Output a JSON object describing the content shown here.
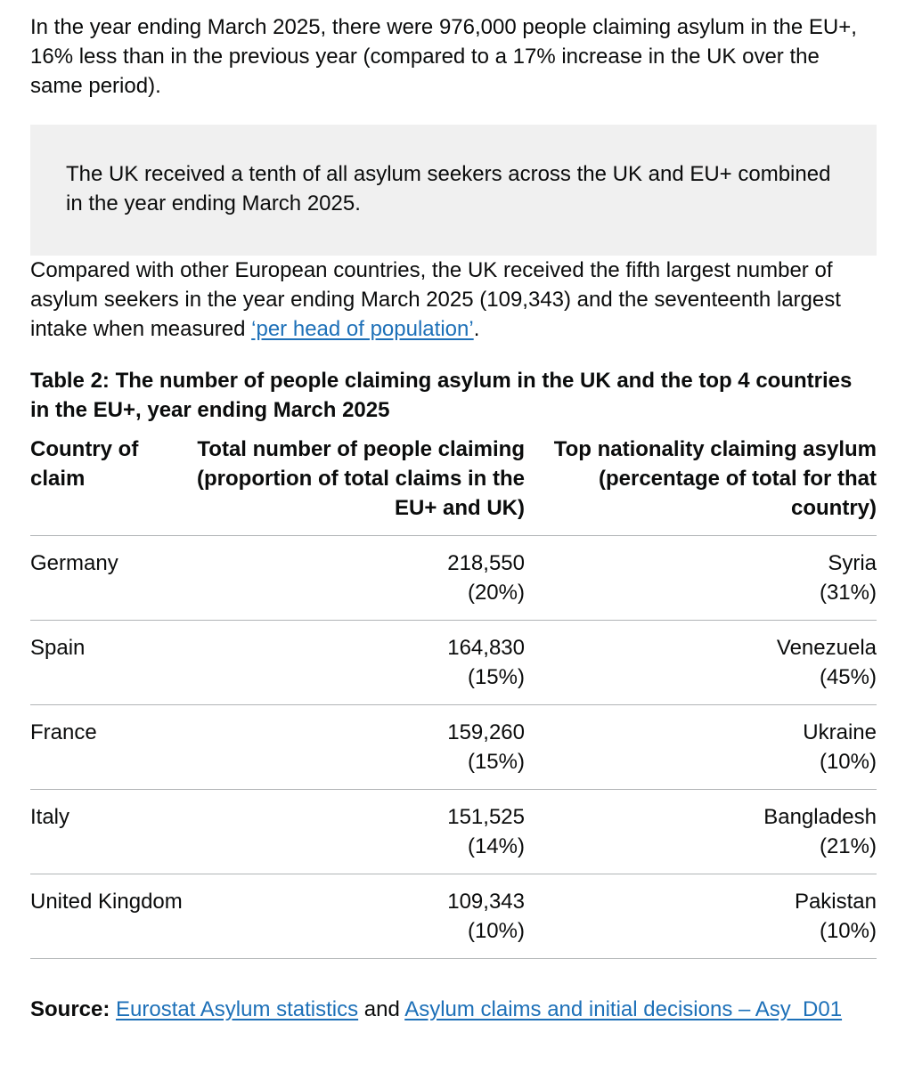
{
  "intro": "In the year ending March 2025, there were 976,000 people claiming asylum in the EU+, 16% less than in the previous year (compared to a 17% increase in the UK over the same period).",
  "callout": "The UK received a tenth of all asylum seekers across the UK and EU+ combined in the year ending March 2025.",
  "compare": {
    "text_before": "Compared with other European countries, the UK received the fifth largest number of asylum seekers in the year ending March 2025 (109,343) and the seventeenth largest intake when measured ",
    "link_label": "‘per head of population’",
    "text_after": "."
  },
  "table": {
    "caption": "Table 2: The number of people claiming asylum in the UK and the top 4 countries in the EU+, year ending March 2025",
    "headers": [
      "Country of claim",
      "Total number of people claiming (proportion of total claims in the EU+ and UK)",
      "Top nationality claiming asylum (percentage of total for that country)"
    ],
    "rows": [
      {
        "country": "Germany",
        "total": "218,550",
        "total_pct": "(20%)",
        "nationality": "Syria",
        "nationality_pct": "(31%)"
      },
      {
        "country": "Spain",
        "total": "164,830",
        "total_pct": "(15%)",
        "nationality": "Venezuela",
        "nationality_pct": "(45%)"
      },
      {
        "country": "France",
        "total": "159,260",
        "total_pct": "(15%)",
        "nationality": "Ukraine",
        "nationality_pct": "(10%)"
      },
      {
        "country": "Italy",
        "total": "151,525",
        "total_pct": "(14%)",
        "nationality": "Bangladesh",
        "nationality_pct": "(21%)"
      },
      {
        "country": "United Kingdom",
        "total": "109,343",
        "total_pct": "(10%)",
        "nationality": "Pakistan",
        "nationality_pct": "(10%)"
      }
    ]
  },
  "source": {
    "label": "Source:",
    "link1": "Eurostat Asylum statistics",
    "joiner": " and ",
    "link2": "Asylum claims and initial decisions – Asy_D01"
  },
  "colors": {
    "link": "#1d70b8",
    "callout_bg": "#f0f0f0",
    "border": "#b1b4b6",
    "text": "#0b0c0c"
  }
}
